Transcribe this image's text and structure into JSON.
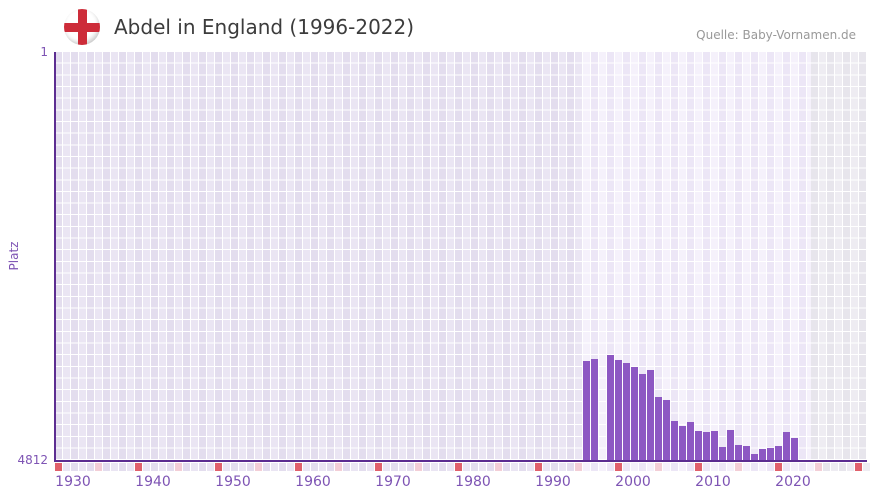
{
  "header": {
    "title": "Abdel in England (1996-2022)",
    "source": "Quelle: Baby-Vornamen.de",
    "flag_icon": "england-flag"
  },
  "chart_data": {
    "type": "bar",
    "title": "Abdel in England (1996-2022)",
    "xlabel": "",
    "ylabel": "Platz",
    "yaxis": {
      "min": 1,
      "max": 4812,
      "inverted": true,
      "tick_labels": [
        "1",
        "4812"
      ]
    },
    "xticks": [
      "1930",
      "1940",
      "1950",
      "1960",
      "1970",
      "1980",
      "1990",
      "2000",
      "2010",
      "2020"
    ],
    "categories": [
      1996,
      1997,
      1998,
      1999,
      2000,
      2001,
      2002,
      2003,
      2004,
      2005,
      2006,
      2007,
      2008,
      2009,
      2010,
      2011,
      2012,
      2013,
      2014,
      2015,
      2016,
      2017,
      2018,
      2019,
      2020,
      2021,
      2022
    ],
    "values": [
      3644,
      3621,
      null,
      3573,
      3632,
      3668,
      3715,
      3797,
      3750,
      4069,
      4104,
      4352,
      4411,
      4364,
      4470,
      4482,
      4470,
      4659,
      4458,
      4635,
      4647,
      4741,
      4682,
      4670,
      4647,
      4482,
      4553
    ],
    "missing_years": [
      1998
    ],
    "highlight_band_years": [
      1996,
      2022
    ],
    "legend": null,
    "grid": "checkered",
    "colors": {
      "bar": "#8d58c3",
      "axis": "#5c2d91",
      "tick_label": "#7e54b4",
      "title_text": "#3c3c3c",
      "source_text": "#999999",
      "grid_past_a": "#e3ddee",
      "grid_past_b": "#eae5f3",
      "grid_band_a": "#f5f1fb",
      "grid_band_b": "#ece6f6",
      "grid_future_a": "#e7e5ec",
      "grid_future_b": "#eeecf2",
      "strip_red": "#e0606b",
      "strip_pink": "#f3ced6",
      "flag_red": "#cd2c39"
    }
  }
}
